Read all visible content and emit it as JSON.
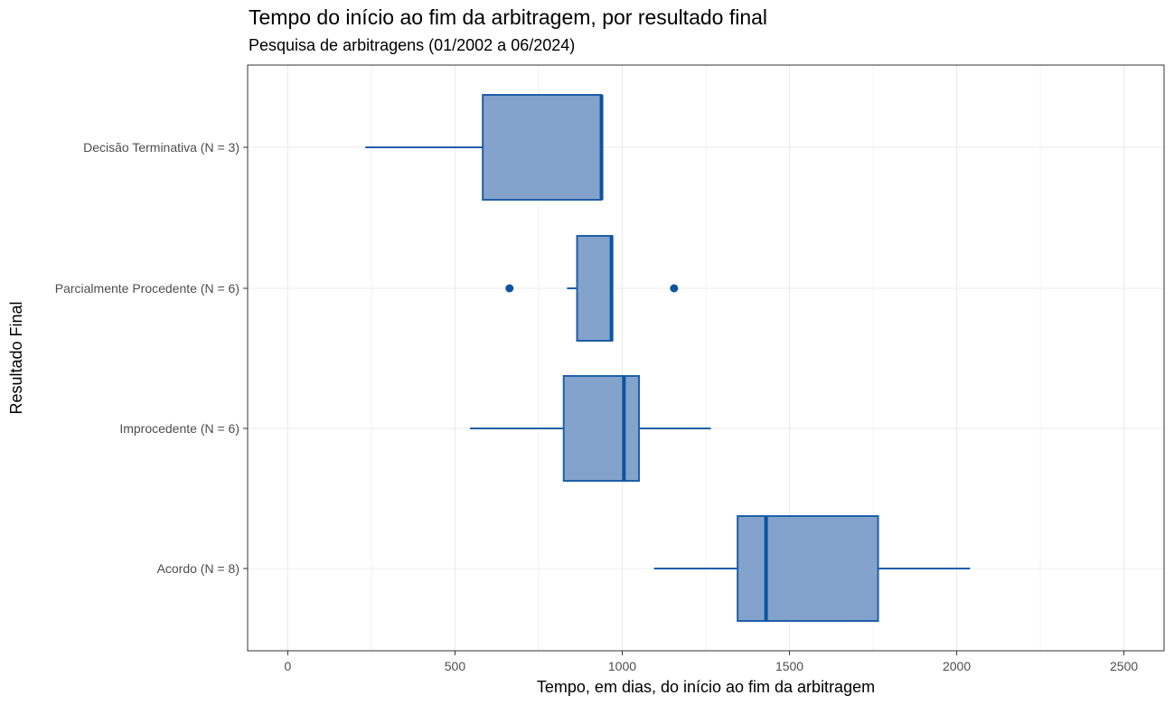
{
  "chart_data": {
    "type": "boxplot",
    "orientation": "horizontal",
    "title": "Tempo do início ao fim da arbitragem, por resultado final",
    "subtitle": "Pesquisa de arbitragens (01/2002 a 06/2024)",
    "xlabel": "Tempo, em dias, do início ao fim da arbitragem",
    "ylabel": "Resultado Final",
    "xlim": [
      -120,
      2620
    ],
    "xticks": [
      0,
      500,
      1000,
      1500,
      2000,
      2500
    ],
    "grid": true,
    "colors": {
      "fill": "#84a3cc",
      "stroke": "#1f5fa8",
      "median": "#0a55a0",
      "grid": "#ebebeb",
      "panel_border": "#333333"
    },
    "categories": [
      {
        "label": "Decisão Terminativa (N = 3)",
        "min": 232,
        "q1": 583,
        "median": 938,
        "q3": 938,
        "max": 938,
        "outliers": []
      },
      {
        "label": "Parcialmente Procedente (N = 6)",
        "min": 835,
        "q1": 865,
        "median": 968,
        "q3": 970,
        "max": 970,
        "outliers": [
          663,
          1155
        ]
      },
      {
        "label": "Improcedente (N = 6)",
        "min": 545,
        "q1": 825,
        "median": 1005,
        "q3": 1050,
        "max": 1265,
        "outliers": []
      },
      {
        "label": "Acordo (N = 8)",
        "min": 1095,
        "q1": 1345,
        "median": 1430,
        "q3": 1765,
        "max": 2040,
        "outliers": []
      }
    ]
  }
}
